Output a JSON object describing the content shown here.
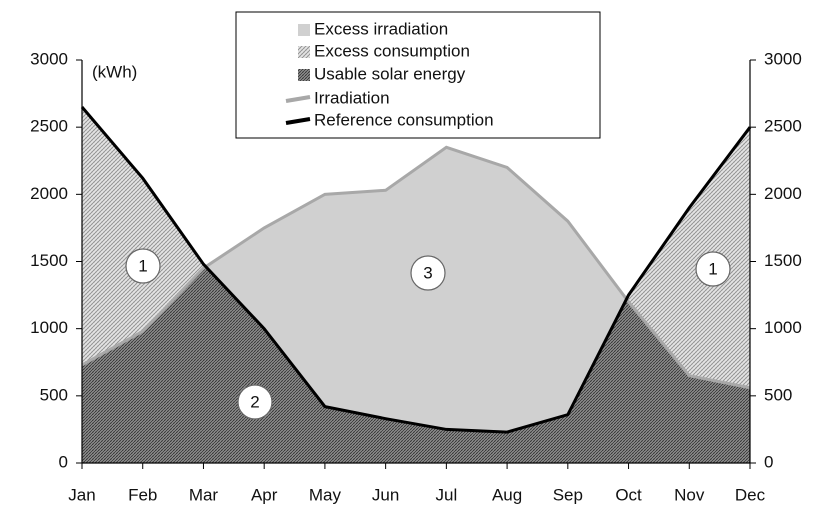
{
  "chart_data": {
    "type": "area-line",
    "y_label": "(kWh)",
    "categories": [
      "Jan",
      "Feb",
      "Mar",
      "Apr",
      "May",
      "Jun",
      "Jul",
      "Aug",
      "Sep",
      "Oct",
      "Nov",
      "Dec"
    ],
    "series": [
      {
        "name": "Irradiation",
        "color": "#a8a8a8",
        "values": [
          730,
          980,
          1450,
          1750,
          2000,
          2030,
          2350,
          2200,
          1800,
          1200,
          650,
          560
        ]
      },
      {
        "name": "Reference consumption",
        "color": "#000000",
        "values": [
          2650,
          2120,
          1480,
          1000,
          420,
          330,
          250,
          230,
          360,
          1250,
          1900,
          2500
        ]
      }
    ],
    "areas": [
      {
        "name": "Excess irradiation",
        "color": "#d0d0d0"
      },
      {
        "name": "Excess consumption",
        "color": "#bdbdbd"
      },
      {
        "name": "Usable solar energy",
        "color": "#7a7a7a"
      }
    ],
    "annotations": [
      "1",
      "2",
      "3",
      "1"
    ],
    "ylim": [
      0,
      3000
    ],
    "yticks": [
      0,
      500,
      1000,
      1500,
      2000,
      2500,
      3000
    ],
    "y2lim": [
      0,
      3000
    ],
    "y2ticks": [
      0,
      500,
      1000,
      1500,
      2000,
      2500,
      3000
    ]
  }
}
